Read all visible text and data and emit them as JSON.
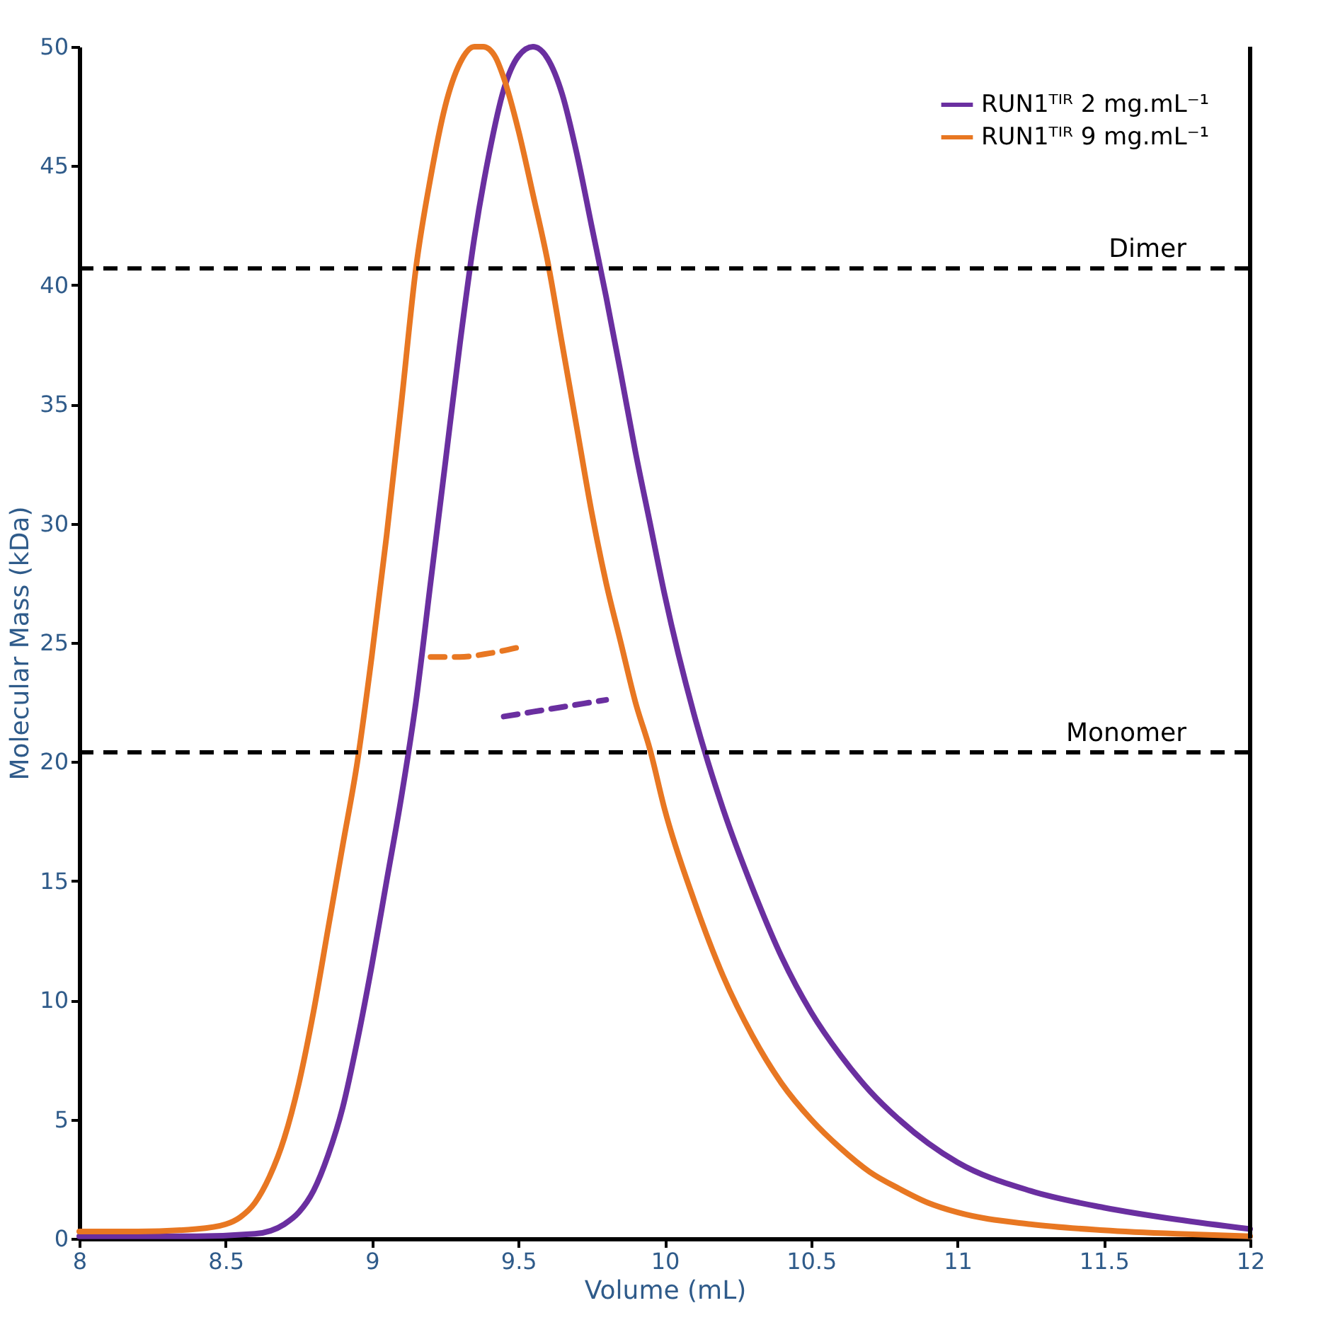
{
  "chart_data": {
    "type": "line",
    "xlabel": "Volume (mL)",
    "ylabel": "Molecular Mass (kDa)",
    "xlim": [
      8,
      12
    ],
    "xticks": [
      8,
      8.5,
      9,
      9.5,
      10,
      10.5,
      11,
      11.5,
      12
    ],
    "ylim": [
      0,
      50
    ],
    "yticks": [
      0,
      5,
      10,
      15,
      20,
      25,
      30,
      35,
      40,
      45,
      50
    ],
    "grid": false,
    "legend": "top right",
    "marker": "none",
    "series": [
      {
        "name": "RUN1ᵀᴵᴿ 2 mg.mL⁻¹",
        "color": "#6a2fa0",
        "line_style": "solid",
        "x": [
          8.0,
          8.4,
          8.6,
          8.7,
          8.75,
          8.8,
          8.85,
          8.9,
          8.95,
          9.0,
          9.05,
          9.1,
          9.15,
          9.2,
          9.25,
          9.3,
          9.35,
          9.4,
          9.45,
          9.5,
          9.55,
          9.6,
          9.65,
          9.7,
          9.75,
          9.8,
          9.85,
          9.9,
          9.95,
          10.0,
          10.1,
          10.2,
          10.3,
          10.4,
          10.5,
          10.6,
          10.7,
          10.8,
          10.9,
          11.0,
          11.25,
          11.5,
          11.75,
          12.0
        ],
        "values": [
          0.1,
          0.1,
          0.2,
          0.6,
          1.1,
          2,
          3.5,
          5.5,
          8.3,
          11.5,
          15,
          18.5,
          22.5,
          27.5,
          32.5,
          37.5,
          42,
          45.5,
          48.2,
          49.6,
          50,
          49.5,
          48,
          45.5,
          42.5,
          39.5,
          36.3,
          33,
          30,
          27,
          22,
          18,
          14.7,
          11.8,
          9.5,
          7.7,
          6.2,
          5,
          4,
          3.2,
          2,
          1.3,
          0.8,
          0.4
        ]
      },
      {
        "name": "RUN1ᵀᴵᴿ 9 mg.mL⁻¹",
        "color": "#e87722",
        "line_style": "solid",
        "x": [
          8.0,
          8.2,
          8.4,
          8.5,
          8.55,
          8.6,
          8.65,
          8.7,
          8.75,
          8.8,
          8.85,
          8.9,
          8.95,
          9.0,
          9.05,
          9.1,
          9.15,
          9.2,
          9.25,
          9.3,
          9.35,
          9.38,
          9.42,
          9.45,
          9.5,
          9.55,
          9.6,
          9.65,
          9.7,
          9.75,
          9.8,
          9.85,
          9.9,
          9.95,
          10.0,
          10.1,
          10.2,
          10.3,
          10.4,
          10.5,
          10.6,
          10.7,
          10.8,
          10.9,
          11.0,
          11.25,
          11.5,
          11.75,
          12.0
        ],
        "values": [
          0.3,
          0.3,
          0.4,
          0.6,
          0.9,
          1.5,
          2.6,
          4.2,
          6.5,
          9.5,
          13,
          16.5,
          20,
          24.5,
          29.5,
          35,
          40.7,
          44.5,
          47.5,
          49.3,
          50,
          50,
          49.6,
          48.7,
          46.5,
          43.8,
          41,
          37.5,
          34,
          30.5,
          27.5,
          25,
          22.5,
          20.5,
          18,
          14.2,
          11,
          8.5,
          6.5,
          5,
          3.8,
          2.8,
          2.1,
          1.5,
          1.1,
          0.6,
          0.35,
          0.2,
          0.1
        ]
      },
      {
        "color": "#e87722",
        "line_style": "dashed",
        "x": [
          9.2,
          9.3,
          9.4,
          9.5
        ],
        "values": [
          24.4,
          24.4,
          24.55,
          24.8
        ]
      },
      {
        "color": "#6a2fa0",
        "line_style": "dashed",
        "x": [
          9.45,
          9.55,
          9.65,
          9.8
        ],
        "values": [
          21.9,
          22.1,
          22.3,
          22.6
        ]
      }
    ],
    "ref_lines": [
      {
        "axis": "y",
        "value": 40.7,
        "label": "Dimer",
        "color": "#000000",
        "line_style": "dashed"
      },
      {
        "axis": "y",
        "value": 20.4,
        "label": "Monomer",
        "color": "#000000",
        "line_style": "dashed"
      }
    ]
  }
}
